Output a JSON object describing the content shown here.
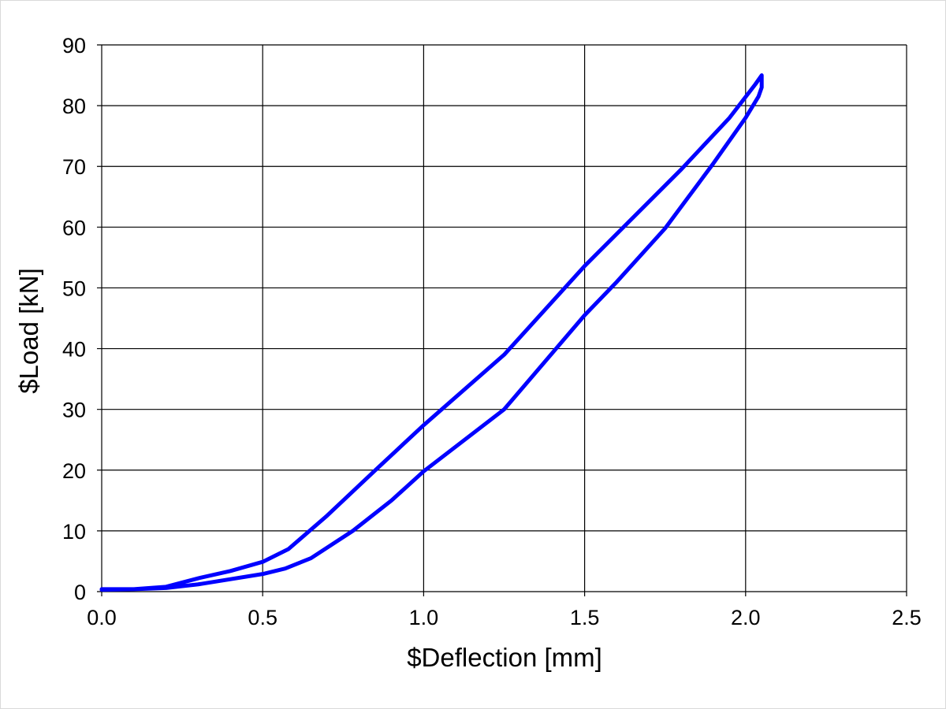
{
  "chart_data": {
    "type": "line",
    "x_label": "$Deflection [mm]",
    "y_label": "$Load [kN]",
    "series": [
      {
        "color": "#0000ff",
        "x": [
          0,
          0.1,
          0.2,
          0.3,
          0.4,
          0.5,
          0.58,
          0.7,
          0.85,
          1.0,
          1.25,
          1.5,
          1.8,
          1.95,
          2.03,
          2.05,
          2.05,
          2.04,
          2.0,
          1.9,
          1.75,
          1.6,
          1.5,
          1.25,
          1.0,
          0.9,
          0.78,
          0.65,
          0.57,
          0.5,
          0.3,
          0.2,
          0.1,
          0
        ],
        "values": [
          0.3,
          0.4,
          0.8,
          2.2,
          3.4,
          4.9,
          7,
          12.5,
          20,
          27.4,
          39,
          53.6,
          69.5,
          78,
          83.5,
          85,
          83,
          81.5,
          78,
          70.5,
          59.8,
          51,
          45.5,
          30,
          19.8,
          15,
          10,
          5.5,
          3.8,
          2.9,
          1.2,
          0.6,
          0.4,
          0.4
        ]
      }
    ],
    "xlim": [
      0,
      2.5
    ],
    "xticks": [
      {
        "value": 0,
        "label": "0.0"
      },
      0.5,
      {
        "value": 1,
        "label": "1.0"
      },
      1.5,
      {
        "value": 2,
        "label": "2.0"
      },
      2.5
    ],
    "ylim": [
      0,
      90
    ],
    "yticks": [
      0,
      10,
      20,
      30,
      40,
      50,
      60,
      70,
      80,
      90
    ],
    "grid": true
  }
}
